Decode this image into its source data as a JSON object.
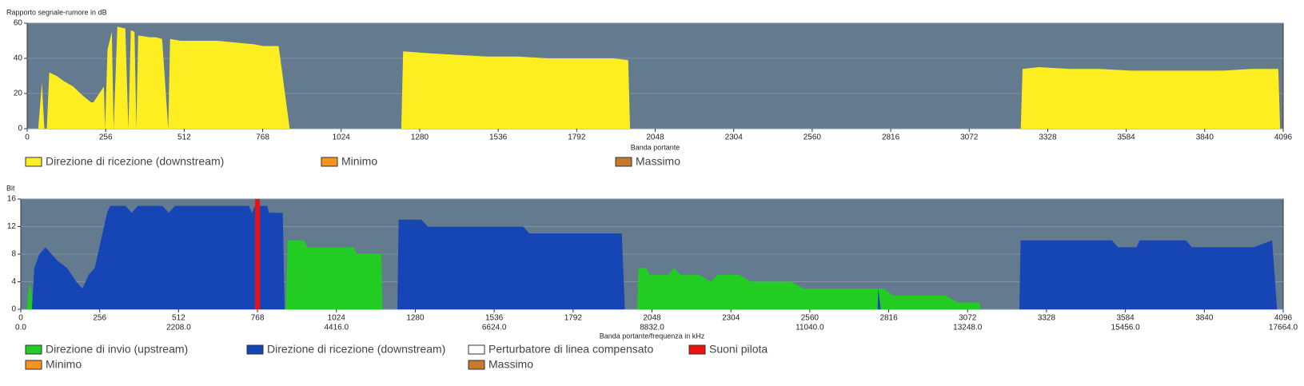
{
  "chart_data": [
    {
      "type": "area",
      "title": "Rapporto segnale-rumore in dB",
      "x_label": "Banda portante",
      "xlim": [
        0,
        4096
      ],
      "xticks": [
        0,
        256,
        512,
        768,
        1024,
        1280,
        1536,
        1792,
        2048,
        2304,
        2560,
        2816,
        3072,
        3328,
        3584,
        3840,
        4096
      ],
      "ylim": [
        0,
        60
      ],
      "yticks": [
        0,
        20,
        40,
        60
      ],
      "grid": true,
      "series": [
        {
          "name": "Direzione di ricezione (downstream)",
          "color": "#fcee21",
          "x": [
            36,
            48,
            56,
            64,
            72,
            96,
            120,
            150,
            180,
            208,
            216,
            250,
            254,
            262,
            276,
            282,
            294,
            320,
            330,
            338,
            350,
            356,
            362,
            400,
            420,
            440,
            460,
            466,
            500,
            560,
            620,
            680,
            740,
            770,
            820,
            856,
            null,
            1220,
            1226,
            1300,
            1400,
            1500,
            1600,
            1700,
            1800,
            1910,
            1960,
            1966,
            null,
            3240,
            3246,
            3300,
            3400,
            3500,
            3600,
            3700,
            3800,
            3900,
            3990,
            4080,
            4086
          ],
          "values": [
            0,
            26,
            0,
            0,
            32,
            30,
            27,
            24,
            19,
            15,
            15,
            24,
            0,
            45,
            55,
            0,
            58,
            57,
            0,
            56,
            55,
            0,
            53,
            52,
            52,
            51,
            0,
            51,
            50,
            50,
            50,
            49,
            48,
            47,
            47,
            0,
            null,
            0,
            44,
            43,
            42,
            41,
            41,
            40,
            40,
            40,
            39,
            0,
            null,
            0,
            34,
            35,
            34,
            34,
            33,
            33,
            33,
            33,
            34,
            34,
            0
          ]
        },
        {
          "name": "Minimo",
          "color": "#f7931e"
        },
        {
          "name": "Massimo",
          "color": "#c87a2a"
        }
      ]
    },
    {
      "type": "area",
      "title": "Bit",
      "x_label": "Banda portante/frequenza in kHz",
      "xlim": [
        0,
        4096
      ],
      "xticks": [
        0,
        256,
        512,
        768,
        1024,
        1280,
        1536,
        1792,
        2048,
        2304,
        2560,
        2816,
        3072,
        3328,
        3584,
        3840,
        4096
      ],
      "x2lim": [
        0,
        17664
      ],
      "x2ticks": [
        {
          "value": 0,
          "label": "0.0"
        },
        {
          "value": 2208,
          "label": "2208.0"
        },
        {
          "value": 4416,
          "label": "4416.0"
        },
        {
          "value": 6624,
          "label": "6624.0"
        },
        {
          "value": 8832,
          "label": "8832.0"
        },
        {
          "value": 11040,
          "label": "11040.0"
        },
        {
          "value": 13248,
          "label": "13248.0"
        },
        {
          "value": 15456,
          "label": "15456.0"
        },
        {
          "value": 17664,
          "label": "17664.0"
        }
      ],
      "ylim": [
        0,
        16
      ],
      "yticks": [
        0,
        4,
        8,
        12,
        16
      ],
      "grid": true,
      "series": [
        {
          "name": "Direzione di invio (upstream)",
          "color": "#22cc22",
          "x": [
            20,
            28,
            36,
            40,
            null,
            860,
            866,
            920,
            930,
            1080,
            1090,
            1170,
            1174,
            null,
            2000,
            2004,
            2030,
            2040,
            2100,
            2120,
            2140,
            2200,
            2240,
            2260,
            2330,
            2370,
            2500,
            2540,
            2800,
            2830,
            3000,
            3040,
            3110,
            3114
          ],
          "values": [
            0,
            4,
            2,
            0,
            null,
            0,
            10,
            10,
            9,
            9,
            8,
            8,
            0,
            null,
            0,
            6,
            6,
            5,
            5,
            6,
            5,
            5,
            4,
            5,
            5,
            4,
            4,
            3,
            3,
            2,
            2,
            1,
            1,
            0
          ]
        },
        {
          "name": "Direzione di ricezione (downstream)",
          "color": "#1646b5",
          "x": [
            36,
            44,
            60,
            80,
            100,
            120,
            150,
            180,
            200,
            220,
            240,
            260,
            280,
            290,
            340,
            360,
            380,
            460,
            480,
            500,
            740,
            750,
            760,
            800,
            805,
            850,
            856,
            null,
            1222,
            1226,
            1300,
            1320,
            1630,
            1650,
            1820,
            1950,
            1960,
            null,
            2780,
            2782,
            2790,
            null,
            3240,
            3244,
            3540,
            3560,
            3620,
            3630,
            3780,
            3800,
            4000,
            4060,
            4076
          ],
          "values": [
            0,
            6,
            8,
            9,
            8,
            7,
            6,
            4,
            3,
            5,
            6,
            10,
            14,
            15,
            15,
            14,
            15,
            15,
            14,
            15,
            15,
            14,
            15,
            15,
            14,
            14,
            0,
            null,
            0,
            13,
            13,
            12,
            12,
            11,
            11,
            11,
            0,
            null,
            0,
            3,
            0,
            null,
            0,
            10,
            10,
            9,
            9,
            10,
            10,
            9,
            9,
            10,
            0
          ]
        },
        {
          "name": "Perturbatore di linea compensato",
          "color": "#ffffff"
        },
        {
          "name": "Suoni pilota",
          "color": "#ee1111",
          "type": "bar",
          "x": [
            768
          ],
          "values": [
            16
          ]
        },
        {
          "name": "Minimo",
          "color": "#f7931e"
        },
        {
          "name": "Massimo",
          "color": "#c87a2a"
        }
      ]
    }
  ]
}
